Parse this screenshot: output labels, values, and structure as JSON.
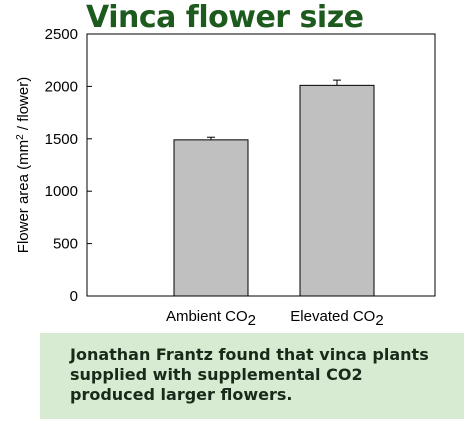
{
  "title": "Vinca flower size",
  "caption": "Jonathan Frantz found that vinca plants supplied with supplemental CO2 produced larger flowers.",
  "chart_data": {
    "type": "bar",
    "categories": [
      "Ambient CO2",
      "Elevated CO2"
    ],
    "values": [
      1490,
      2010
    ],
    "errors": [
      25,
      50
    ],
    "xlabel": "",
    "ylabel": "Flower area (mm2 / flower)",
    "ylim": [
      0,
      2500
    ],
    "yticks": [
      0,
      500,
      1000,
      1500,
      2000,
      2500
    ],
    "grid": false,
    "bar_color": "#c0c0c0"
  }
}
